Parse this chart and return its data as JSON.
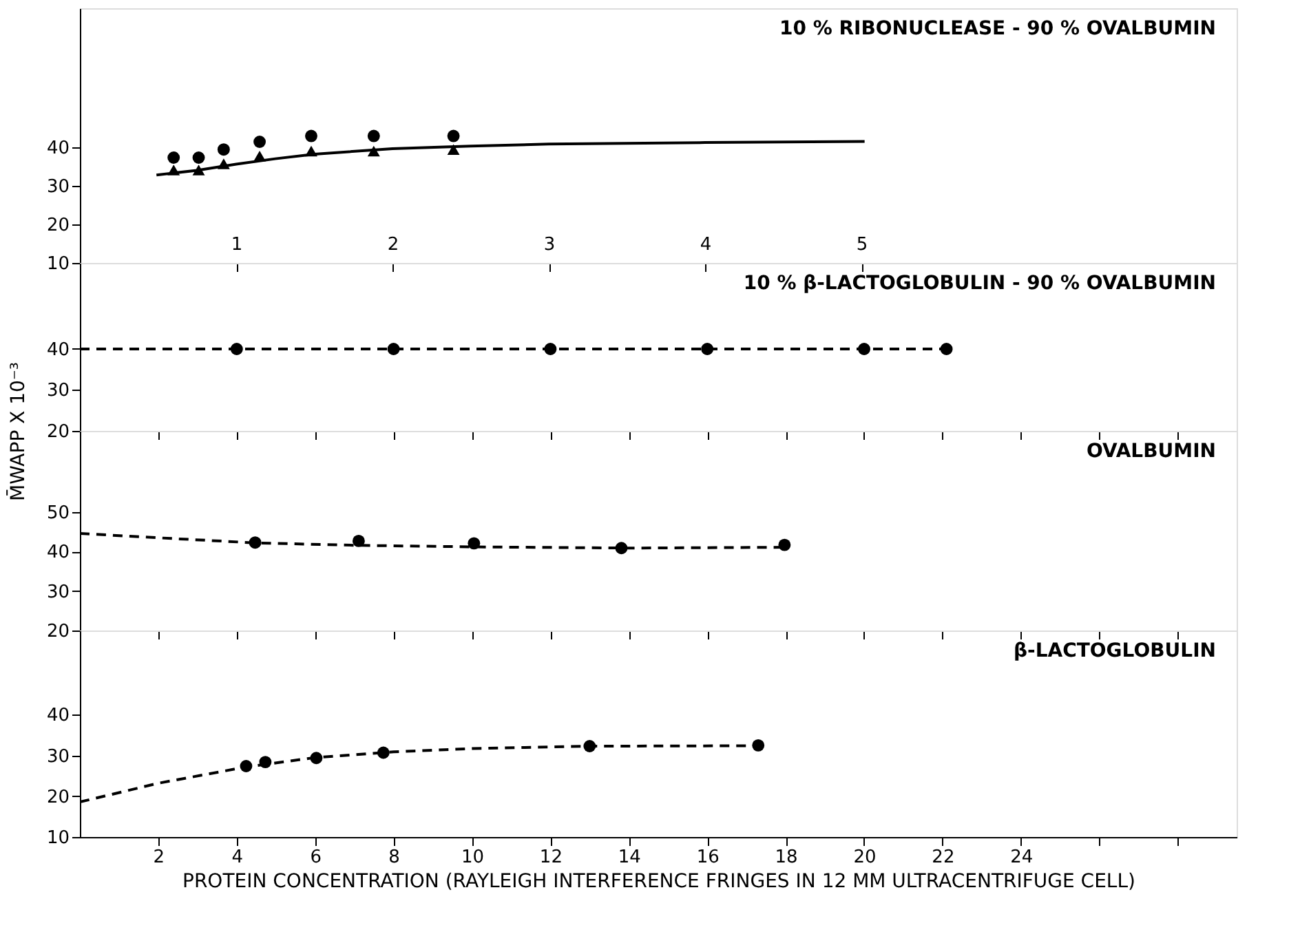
{
  "chart_data": [
    {
      "type": "scatter",
      "annotations": [
        "10 % RIBONUCLEASE - 90 % OVALBUMIN"
      ],
      "xlim": [
        0,
        7.4
      ],
      "xticks": [
        1,
        2,
        3,
        4,
        5
      ],
      "ylim": [
        10,
        76
      ],
      "yticks": [
        10,
        20,
        30,
        40
      ],
      "grid": false,
      "series": [
        {
          "marker": "circle",
          "color": "#000000",
          "x": [
            0.6,
            0.76,
            0.92,
            1.15,
            1.48,
            1.88,
            2.39
          ],
          "values": [
            37.3,
            37.3,
            39.4,
            41.4,
            42.9,
            42.9,
            42.9
          ]
        },
        {
          "marker": "triangle",
          "color": "#000000",
          "x": [
            0.6,
            0.76,
            0.92,
            1.15,
            1.48,
            1.88,
            2.39
          ],
          "values": [
            34.1,
            34.1,
            35.7,
            37.7,
            39.0,
            39.0,
            39.4
          ]
        },
        {
          "type": "line",
          "marker": "none",
          "line_style": "solid",
          "color": "#000000",
          "x": [
            0.49,
            0.75,
            1,
            1.25,
            1.5,
            2,
            2.5,
            3,
            4,
            5.02
          ],
          "values": [
            32.8,
            34,
            35.6,
            37,
            38.2,
            39.6,
            40.3,
            40.8,
            41.2,
            41.5
          ]
        }
      ]
    },
    {
      "type": "scatter",
      "annotations": [
        "10 % β-LACTOGLOBULIN - 90 % OVALBUMIN"
      ],
      "ylabel": "M̄WAPP X 10⁻³",
      "xlim": [
        0,
        29.5
      ],
      "xticks": [
        2,
        4,
        6,
        8,
        10,
        12,
        14,
        16,
        18,
        20,
        22,
        24,
        26,
        28
      ],
      "ylim": [
        20,
        61
      ],
      "yticks": [
        20,
        30,
        40
      ],
      "tick_labels": "y",
      "grid": false,
      "series": [
        {
          "type": "line",
          "marker": "none",
          "line_style": "dashed",
          "color": "#000000",
          "x": [
            0,
            22.1
          ],
          "values": [
            40,
            40
          ]
        },
        {
          "marker": "circle",
          "color": "#000000",
          "x": [
            4,
            8,
            12,
            16,
            20,
            22.1
          ],
          "values": [
            40,
            40,
            40,
            40,
            40,
            40
          ]
        }
      ]
    },
    {
      "type": "scatter",
      "annotations": [
        "OVALBUMIN"
      ],
      "xlim": [
        0,
        29.5
      ],
      "xticks": [
        2,
        4,
        6,
        8,
        10,
        12,
        14,
        16,
        18,
        20,
        22,
        24,
        26,
        28
      ],
      "ylim": [
        20,
        70.6
      ],
      "yticks": [
        20,
        30,
        40,
        50
      ],
      "tick_labels": "y",
      "grid": false,
      "series": [
        {
          "type": "line",
          "marker": "none",
          "line_style": "dashed",
          "color": "#000000",
          "x": [
            0,
            2,
            4.5,
            7,
            10,
            14,
            18
          ],
          "values": [
            44.6,
            43.5,
            42.2,
            41.6,
            41.2,
            40.9,
            41.1
          ]
        },
        {
          "marker": "circle",
          "color": "#000000",
          "x": [
            4.47,
            7.11,
            10.05,
            13.81,
            17.97
          ],
          "values": [
            42.3,
            42.7,
            42.1,
            40.9,
            41.7
          ]
        }
      ]
    },
    {
      "type": "scatter",
      "annotations": [
        "β-LACTOGLOBULIN"
      ],
      "xlabel": "PROTEIN CONCENTRATION (RAYLEIGH INTERFERENCE FRINGES IN 12 MM ULTRACENTRIFUGE CELL)",
      "xlim": [
        0,
        29.5
      ],
      "xticks": [
        2,
        4,
        6,
        8,
        10,
        12,
        14,
        16,
        18,
        20,
        22,
        24,
        {
          "value": 26,
          "label": null
        },
        {
          "value": 28,
          "label": null
        }
      ],
      "ylim": [
        10,
        60.7
      ],
      "yticks": [
        10,
        20,
        30,
        40
      ],
      "grid": false,
      "series": [
        {
          "type": "line",
          "marker": "none",
          "line_style": "dashed",
          "color": "#000000",
          "x": [
            0,
            2,
            4.24,
            6,
            8,
            10,
            13,
            17.3
          ],
          "values": [
            18.6,
            23.2,
            27.2,
            29.5,
            30.9,
            31.7,
            32.3,
            32.4
          ]
        },
        {
          "marker": "circle",
          "color": "#000000",
          "x": [
            4.24,
            4.73,
            6.03,
            7.74,
            13.0,
            17.3
          ],
          "values": [
            27.4,
            28.4,
            29.4,
            30.7,
            32.3,
            32.5
          ]
        }
      ]
    }
  ]
}
